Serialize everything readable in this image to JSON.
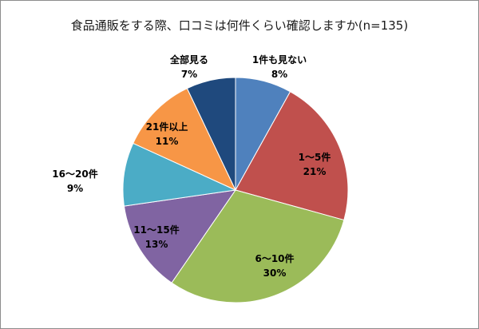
{
  "chart_data": {
    "type": "pie",
    "title": "食品通販をする際、口コミは何件くらい確認しますか(n=135)",
    "slices": [
      {
        "label": "1件も見ない",
        "percent_label": "8%",
        "value": 8,
        "color": "#4f81bd"
      },
      {
        "label": "1～5件",
        "percent_label": "21%",
        "value": 21,
        "color": "#c0504d"
      },
      {
        "label": "6～10件",
        "percent_label": "30%",
        "value": 30,
        "color": "#9bbb59"
      },
      {
        "label": "11～15件",
        "percent_label": "13%",
        "value": 13,
        "color": "#8064a2"
      },
      {
        "label": "16～20件",
        "percent_label": "9%",
        "value": 9,
        "color": "#4bacc6"
      },
      {
        "label": "21件以上",
        "percent_label": "11%",
        "value": 11,
        "color": "#f79646"
      },
      {
        "label": "全部見る",
        "percent_label": "7%",
        "value": 7,
        "color": "#1f497d"
      }
    ],
    "start": "12 o'clock",
    "direction": "clockwise"
  }
}
